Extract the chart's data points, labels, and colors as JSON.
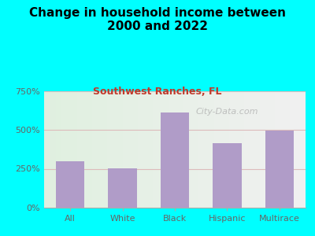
{
  "title": "Change in household income between\n2000 and 2022",
  "subtitle": "Southwest Ranches, FL",
  "categories": [
    "All",
    "White",
    "Black",
    "Hispanic",
    "Multirace"
  ],
  "values": [
    300,
    255,
    610,
    415,
    495
  ],
  "bar_color": "#b09cc8",
  "subtitle_color": "#c0392b",
  "title_color": "#000000",
  "background_outer": "#00ffff",
  "ylim": [
    0,
    750
  ],
  "yticks": [
    0,
    250,
    500,
    750
  ],
  "ytick_labels": [
    "0%",
    "250%",
    "500%",
    "750%"
  ],
  "grid_color": "#ddbbbb",
  "watermark": "City-Data.com"
}
